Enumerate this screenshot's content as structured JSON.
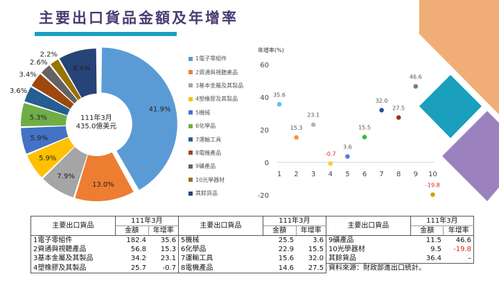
{
  "title": "主要出口貨品金額及年增率",
  "donut": {
    "center_line1": "111年3月",
    "center_line2": "435.0億美元"
  },
  "legend": [
    {
      "label": "1電子零組件",
      "color": "#5b9bd5"
    },
    {
      "label": "2資通與視聽產品",
      "color": "#ed7d31"
    },
    {
      "label": "3基本金屬及其製品",
      "color": "#a5a5a5"
    },
    {
      "label": "4塑橡膠及其製品",
      "color": "#ffc000"
    },
    {
      "label": "5機械",
      "color": "#4472c4"
    },
    {
      "label": "6化學品",
      "color": "#70ad47"
    },
    {
      "label": "7運輸工具",
      "color": "#255e91"
    },
    {
      "label": "8電機產品",
      "color": "#9e480e"
    },
    {
      "label": "9礦產品",
      "color": "#636363"
    },
    {
      "label": "10光學器材",
      "color": "#997300"
    },
    {
      "label": "其餘貨品",
      "color": "#264478"
    }
  ],
  "scatter": {
    "ylabel": "年增率(%)"
  },
  "table": {
    "header_item": "主要出口貨品",
    "header_period": "111年3月",
    "header_amount": "金額",
    "header_growth": "年增率",
    "col1": [
      {
        "name": "1電子零組件",
        "amount": "182.4",
        "growth": "35.6"
      },
      {
        "name": "2資通與視聽產品",
        "amount": "56.8",
        "growth": "15.3"
      },
      {
        "name": "3基本金屬及其製品",
        "amount": "34.2",
        "growth": "23.1"
      },
      {
        "name": "4塑橡膠及其製品",
        "amount": "25.7",
        "growth": "-0.7"
      }
    ],
    "col2": [
      {
        "name": "5機械",
        "amount": "25.5",
        "growth": "3.6"
      },
      {
        "name": "6化學品",
        "amount": "22.9",
        "growth": "15.5"
      },
      {
        "name": "7運輸工具",
        "amount": "15.6",
        "growth": "32.0"
      },
      {
        "name": "8電機產品",
        "amount": "14.6",
        "growth": "27.5"
      }
    ],
    "col3": [
      {
        "name": "9礦產品",
        "amount": "11.5",
        "growth": "46.6"
      },
      {
        "name": "10光學器材",
        "amount": "9.5",
        "growth": "-19.8"
      },
      {
        "name": "其餘貨品",
        "amount": "36.4",
        "growth": "–"
      }
    ],
    "source": "資料來源：財政部進出口統計。"
  },
  "chart_data": [
    {
      "type": "pie",
      "title": "111年3月 435.0億美元",
      "categories": [
        "1電子零組件",
        "2資通與視聽產品",
        "3基本金屬及其製品",
        "4塑橡膠及其製品",
        "5機械",
        "6化學品",
        "7運輸工具",
        "8電機產品",
        "9礦產品",
        "10光學器材",
        "其餘貨品"
      ],
      "values": [
        41.9,
        13.0,
        7.9,
        5.9,
        5.9,
        5.3,
        3.6,
        3.4,
        2.6,
        2.2,
        8.4
      ],
      "labels": [
        "41.9%",
        "13.0%",
        "7.9%",
        "5.9%",
        "5.9%",
        "5.3%",
        "3.6%",
        "3.4%",
        "2.6%",
        "2.2%",
        "8.4%"
      ],
      "donut": true,
      "legend_position": "right"
    },
    {
      "type": "scatter",
      "title": "",
      "xlabel": "",
      "ylabel": "年增率(%)",
      "x": [
        1,
        2,
        3,
        4,
        5,
        6,
        7,
        8,
        9,
        10
      ],
      "values": [
        35.6,
        15.3,
        23.1,
        -0.7,
        3.6,
        15.5,
        32.0,
        27.5,
        46.6,
        -19.8
      ],
      "point_colors": [
        "#5bc0f0",
        "#f7943a",
        "#b4b4b4",
        "#ffc933",
        "#4f7fe8",
        "#2ec03a",
        "#2a4f8f",
        "#9a3511",
        "#7a7a7a",
        "#d4a010"
      ],
      "ylim": [
        -20,
        60
      ],
      "yticks": [
        -20,
        0,
        20,
        40,
        60
      ],
      "xticks": [
        1,
        2,
        3,
        4,
        5,
        6,
        7,
        8,
        9,
        10
      ],
      "grid": false
    }
  ]
}
